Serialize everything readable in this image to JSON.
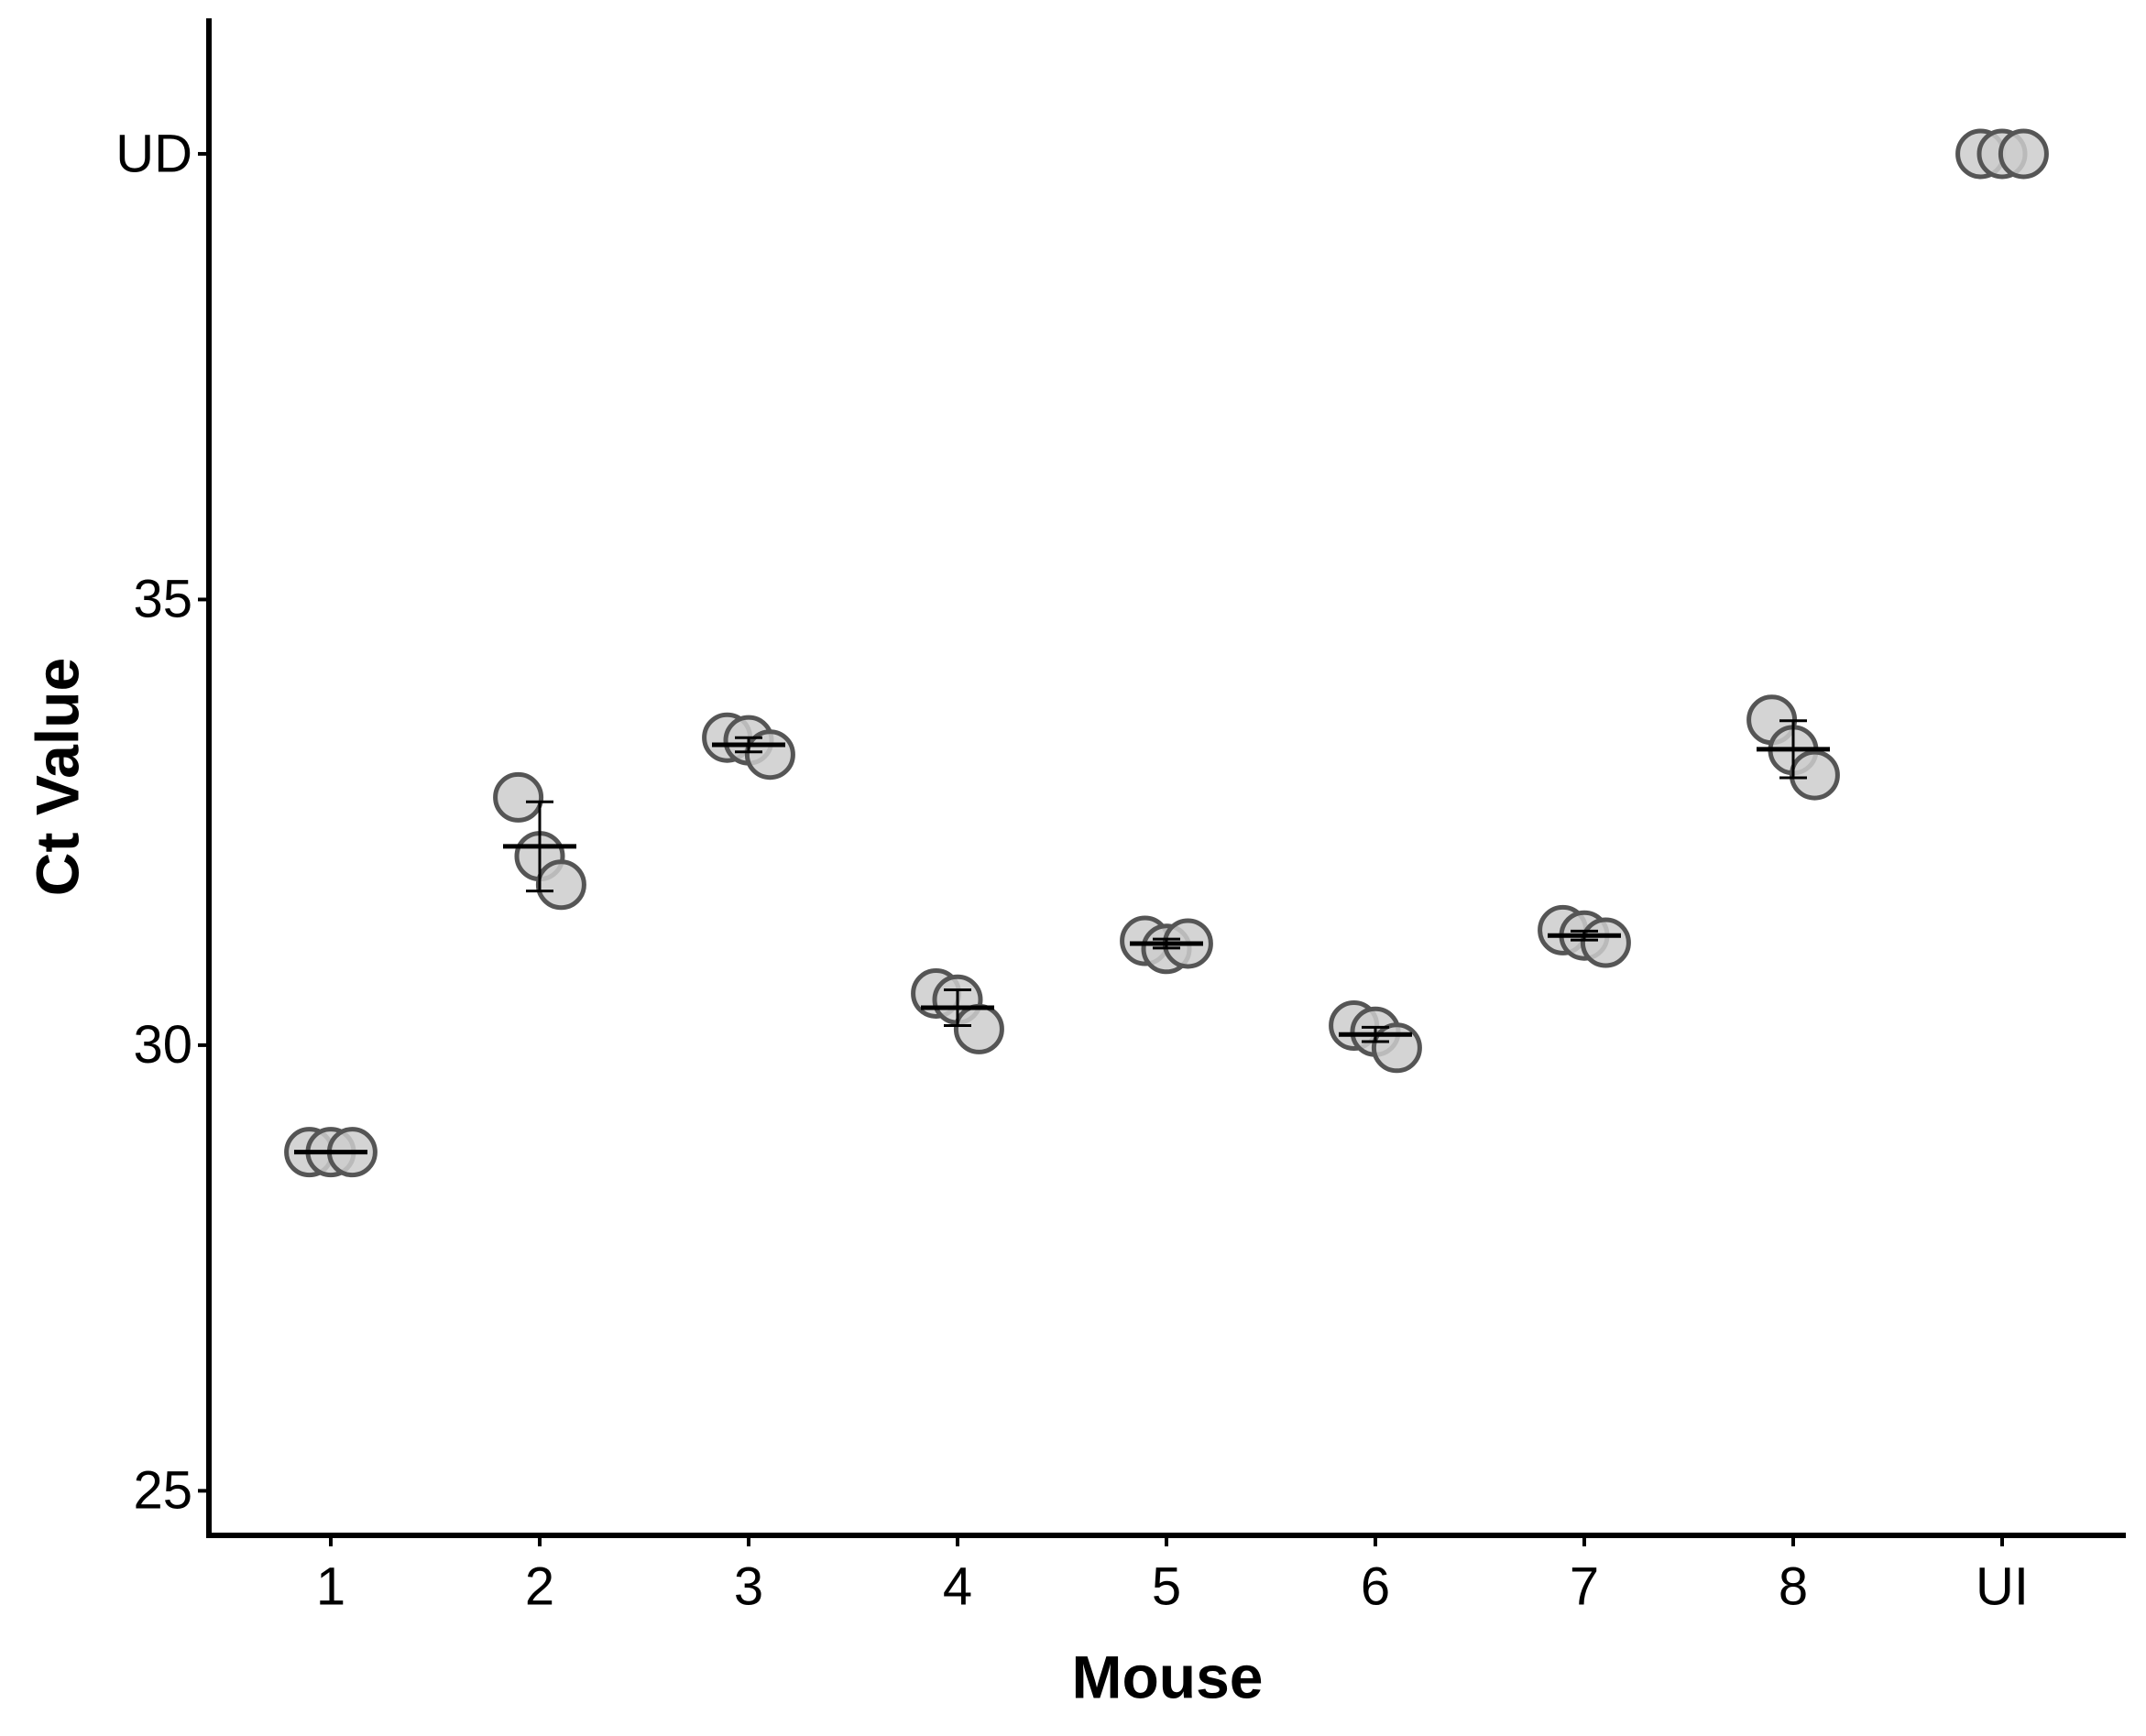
{
  "chart_data": {
    "type": "dot",
    "x_label": "Mouse",
    "y_label": "Ct Value",
    "categories": [
      "1",
      "2",
      "3",
      "4",
      "5",
      "6",
      "7",
      "8",
      "UI"
    ],
    "points": [
      [
        28.8,
        28.8,
        28.8
      ],
      [
        32.78,
        32.12,
        31.8
      ],
      [
        33.45,
        33.42,
        33.26
      ],
      [
        30.58,
        30.51,
        30.18
      ],
      [
        31.17,
        31.08,
        31.14
      ],
      [
        30.22,
        30.15,
        29.97
      ],
      [
        31.29,
        31.23,
        31.15
      ],
      [
        33.65,
        33.31,
        33.03
      ],
      [
        40,
        40,
        40
      ]
    ],
    "means": [
      28.8,
      32.23,
      33.37,
      30.42,
      31.14,
      30.12,
      31.23,
      33.32,
      null
    ],
    "errors": [
      0,
      0.5,
      0.08,
      0.2,
      0.05,
      0.08,
      0.05,
      0.32,
      null
    ],
    "point_color": "#cccccc",
    "point_edge": "#555555",
    "mean_color": "#000000",
    "ylim": [
      24.5,
      41.5
    ],
    "yticks": [
      25,
      30,
      35,
      {
        "value": 40,
        "label": "UD"
      }
    ]
  }
}
